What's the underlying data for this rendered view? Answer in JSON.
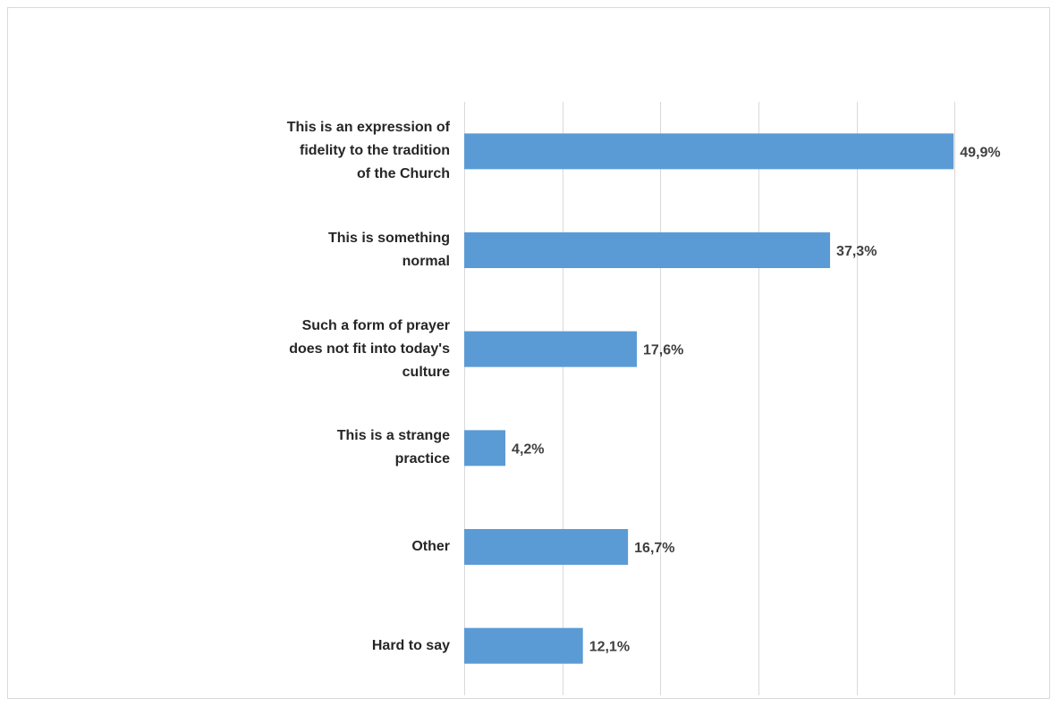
{
  "chart_data": {
    "type": "bar",
    "orientation": "horizontal",
    "categories": [
      "This is an expression of fidelity to the tradition of the Church",
      "This is something normal",
      "Such a form of prayer does not fit into today's culture",
      "This is a strange practice",
      "Other",
      "Hard to say"
    ],
    "category_lines": [
      [
        "This is an expression of",
        "fidelity to the tradition",
        "of the Church"
      ],
      [
        "This is something",
        "normal"
      ],
      [
        "Such a form of prayer",
        "does not fit into today's",
        "culture"
      ],
      [
        "This is a strange",
        "practice"
      ],
      [
        "Other"
      ],
      [
        "Hard to say"
      ]
    ],
    "values": [
      49.9,
      37.3,
      17.6,
      4.2,
      16.7,
      12.1
    ],
    "value_labels": [
      "49,9%",
      "37,3%",
      "17,6%",
      "4,2%",
      "16,7%",
      "12,1%"
    ],
    "xlim": [
      0,
      60
    ],
    "grid": true,
    "bar_color": "#5b9bd5",
    "gridline_color": "#d9d9d9",
    "legend": "none"
  }
}
